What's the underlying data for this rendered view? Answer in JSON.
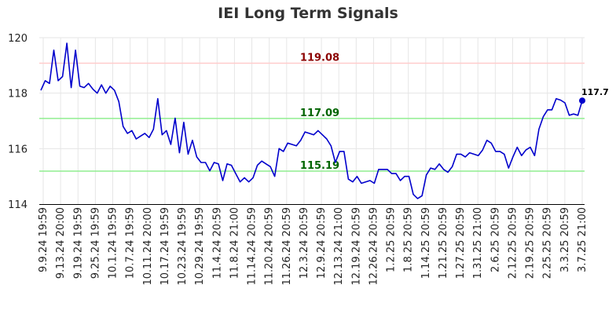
{
  "chart_data": {
    "type": "line",
    "title": "IEI Long Term Signals",
    "xlabel": "",
    "ylabel": "",
    "ylim": [
      114,
      120
    ],
    "yticks": [
      "114",
      "116",
      "118",
      "120"
    ],
    "grid": true,
    "colors": {
      "line": "#0000cc",
      "top_line": "#ffcccc",
      "mid_line": "#90ee90",
      "top_label": "#8b0000",
      "mid_label": "#006400"
    },
    "hlines": [
      {
        "value": 119.08,
        "label": "119.08",
        "kind": "top"
      },
      {
        "value": 117.09,
        "label": "117.09",
        "kind": "mid"
      },
      {
        "value": 115.19,
        "label": "115.19",
        "kind": "mid"
      }
    ],
    "xtick_labels": [
      "9.9.24 19:59",
      "9.13.24 20:00",
      "9.19.24 19:59",
      "9.25.24 19:59",
      "10.1.24 19:59",
      "10.7.24 19:59",
      "10.11.24 20:00",
      "10.17.24 19:59",
      "10.23.24 19:59",
      "10.29.24 19:59",
      "11.4.24 20:59",
      "11.8.24 21:00",
      "11.14.24 20:59",
      "11.20.24 20:59",
      "11.26.24 20:59",
      "12.3.24 20:59",
      "12.9.24 20:59",
      "12.13.24 21:00",
      "12.19.24 20:59",
      "12.26.24 20:59",
      "1.2.25 20:59",
      "1.8.25 20:59",
      "1.14.25 20:59",
      "1.21.25 20:59",
      "1.27.25 20:59",
      "1.31.25 21:00",
      "2.6.25 20:59",
      "2.12.25 20:59",
      "2.19.25 20:59",
      "2.25.25 20:59",
      "3.3.25 20:59",
      "3.7.25 21:00"
    ],
    "series": [
      {
        "values": [
          118.1,
          118.45,
          118.35,
          119.55,
          118.45,
          118.6,
          119.8,
          118.2,
          119.55,
          118.25,
          118.2,
          118.35,
          118.15,
          118.0,
          118.3,
          118.0,
          118.25,
          118.1,
          117.7,
          116.8,
          116.55,
          116.65,
          116.35,
          116.45,
          116.55,
          116.4,
          116.7,
          117.8,
          116.5,
          116.65,
          116.15,
          117.1,
          115.85,
          116.95,
          115.8,
          116.3,
          115.7,
          115.5,
          115.5,
          115.2,
          115.5,
          115.45,
          114.85,
          115.45,
          115.4,
          115.1,
          114.8,
          114.95,
          114.8,
          114.95,
          115.4,
          115.55,
          115.45,
          115.35,
          115.0,
          116.0,
          115.9,
          116.2,
          116.15,
          116.1,
          116.3,
          116.6,
          116.55,
          116.5,
          116.65,
          116.5,
          116.35,
          116.1,
          115.5,
          115.9,
          115.9,
          114.9,
          114.8,
          115.0,
          114.75,
          114.8,
          114.85,
          114.75,
          115.25,
          115.25,
          115.25,
          115.1,
          115.1,
          114.85,
          115.0,
          115.0,
          114.35,
          114.2,
          114.3,
          115.05,
          115.3,
          115.25,
          115.45,
          115.25,
          115.15,
          115.35,
          115.8,
          115.8,
          115.7,
          115.85,
          115.8,
          115.75,
          115.95,
          116.3,
          116.2,
          115.9,
          115.9,
          115.8,
          115.3,
          115.7,
          116.05,
          115.75,
          115.95,
          116.05,
          115.75,
          116.7,
          117.15,
          117.4,
          117.4,
          117.8,
          117.75,
          117.65,
          117.2,
          117.25,
          117.2,
          117.73
        ],
        "last_label": "117.7"
      }
    ]
  }
}
